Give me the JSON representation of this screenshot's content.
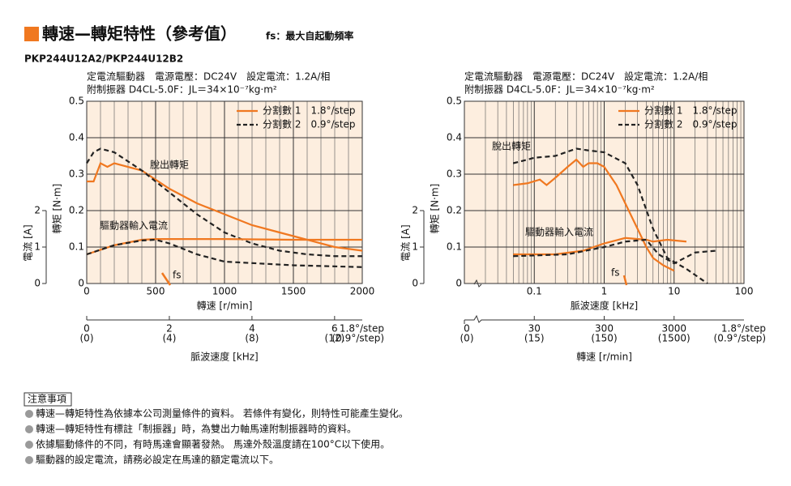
{
  "header": {
    "title": "轉速—轉矩特性（參考值）",
    "fs_note": "fs：最大自起動頻率",
    "model": "PKP244U12A2/PKP244U12B2"
  },
  "chart_data": [
    {
      "type": "line",
      "subtitle": [
        "定電流驅動器　電源電壓：DC24V　設定電流：1.2A/相",
        "附制振器 D4CL-5.0F：JL＝34×10⁻⁷kg·m²"
      ],
      "xlabel": "轉速 [r/min]",
      "ylabel": "轉矩 [N·m]",
      "y2label": "電流 [A]",
      "xlim": [
        0,
        2000
      ],
      "xticks": [
        0,
        500,
        1000,
        1500,
        2000
      ],
      "ylim": [
        0,
        0.5
      ],
      "yticks": [
        0,
        0.1,
        0.2,
        0.3,
        0.4,
        0.5
      ],
      "y2lim": [
        0,
        5
      ],
      "y2ticks": [
        0,
        1,
        2
      ],
      "grid": true,
      "log_x": false,
      "legend": "upper right",
      "annotations": [
        "脫出轉矩",
        "驅動器輸入電流",
        "fs"
      ],
      "x2": {
        "label": "脈波速度 [kHz]",
        "log": false,
        "lim": [
          0,
          6.67
        ],
        "ticks": [
          0,
          2,
          4,
          6
        ],
        "sub_labels": [
          "(0)",
          "(4)",
          "(8)",
          "(12)"
        ],
        "unit_labels": [
          "1.8°/step",
          "(0.9°/step)"
        ]
      },
      "series": [
        {
          "name": "分割數 1　1.8°/step",
          "color": "#f07820",
          "dash": false,
          "x": [
            0,
            50,
            100,
            150,
            200,
            400,
            600,
            800,
            1000,
            1200,
            1400,
            1600,
            1800,
            2000
          ],
          "values": [
            0.28,
            0.28,
            0.33,
            0.32,
            0.33,
            0.31,
            0.26,
            0.22,
            0.19,
            0.16,
            0.14,
            0.12,
            0.1,
            0.09
          ]
        },
        {
          "name": "分割數 2　0.9°/step",
          "color": "#222222",
          "dash": true,
          "x": [
            0,
            50,
            100,
            200,
            400,
            600,
            800,
            1000,
            1200,
            1400,
            1600,
            1800,
            2000
          ],
          "values": [
            0.33,
            0.36,
            0.37,
            0.36,
            0.31,
            0.25,
            0.19,
            0.14,
            0.11,
            0.09,
            0.08,
            0.075,
            0.075
          ]
        },
        {
          "color": "#f07820",
          "dash": false,
          "axis": "y2",
          "x": [
            0,
            200,
            400,
            500,
            700,
            1000,
            1500,
            2000
          ],
          "values": [
            0.8,
            1.05,
            1.2,
            1.22,
            1.22,
            1.22,
            1.2,
            1.2
          ]
        },
        {
          "color": "#222222",
          "dash": true,
          "axis": "y2",
          "x": [
            0,
            200,
            400,
            500,
            600,
            800,
            1000,
            1500,
            2000
          ],
          "values": [
            0.8,
            1.05,
            1.18,
            1.2,
            1.1,
            0.8,
            0.6,
            0.5,
            0.45
          ]
        }
      ]
    },
    {
      "type": "line",
      "subtitle": [
        "定電流驅動器　電源電壓：DC24V　設定電流：1.2A/相",
        "附制振器 D4CL-5.0F：JL＝34×10⁻⁷kg·m²"
      ],
      "xlabel": "脈波速度 [kHz]",
      "ylabel": "轉矩 [N·m]",
      "y2label": "電流 [A]",
      "xlim": [
        0.01,
        100
      ],
      "xticks": [
        0.1,
        1,
        10,
        100
      ],
      "ylim": [
        0,
        0.5
      ],
      "yticks": [
        0,
        0.1,
        0.2,
        0.3,
        0.4,
        0.5
      ],
      "y2lim": [
        0,
        5
      ],
      "y2ticks": [
        0,
        1,
        2
      ],
      "grid": true,
      "log_x": true,
      "legend": "upper right",
      "annotations": [
        "脫出轉矩",
        "驅動器輸入電流",
        "fs"
      ],
      "x2": {
        "label": "轉速 [r/min]",
        "log": true,
        "lim": [
          3,
          30000
        ],
        "ticks": [
          30,
          300,
          3000
        ],
        "sub_labels": [
          "(15)",
          "(150)",
          "(1500)"
        ],
        "break_labels": [
          "0",
          "(0)"
        ],
        "unit_labels": [
          "1.8°/step",
          "(0.9°/step)"
        ]
      },
      "series": [
        {
          "name": "分割數 1　1.8°/step",
          "color": "#f07820",
          "dash": false,
          "x": [
            0.05,
            0.08,
            0.12,
            0.15,
            0.2,
            0.3,
            0.4,
            0.5,
            0.6,
            0.8,
            1,
            1.5,
            2,
            3,
            4,
            5,
            7,
            10
          ],
          "values": [
            0.27,
            0.275,
            0.285,
            0.27,
            0.29,
            0.32,
            0.34,
            0.32,
            0.33,
            0.33,
            0.32,
            0.27,
            0.22,
            0.15,
            0.1,
            0.07,
            0.05,
            0.035
          ]
        },
        {
          "name": "分割數 2　0.9°/step",
          "color": "#222222",
          "dash": true,
          "x": [
            0.05,
            0.08,
            0.1,
            0.2,
            0.4,
            0.6,
            1,
            2,
            3,
            5,
            8,
            15,
            30
          ],
          "values": [
            0.33,
            0.34,
            0.345,
            0.35,
            0.37,
            0.365,
            0.36,
            0.33,
            0.27,
            0.15,
            0.07,
            0.04,
            0
          ]
        },
        {
          "color": "#f07820",
          "dash": false,
          "axis": "y2",
          "x": [
            0.05,
            0.2,
            0.5,
            1,
            2,
            4,
            5,
            8,
            15
          ],
          "values": [
            0.8,
            0.8,
            0.9,
            1.1,
            1.25,
            1.2,
            1.15,
            1.2,
            1.15
          ]
        },
        {
          "color": "#222222",
          "dash": true,
          "axis": "y2",
          "x": [
            0.05,
            0.3,
            1,
            2,
            4,
            6,
            10,
            20,
            40
          ],
          "values": [
            0.75,
            0.8,
            1,
            1.15,
            1.2,
            0.8,
            0.55,
            0.85,
            0.9
          ]
        }
      ]
    }
  ],
  "notes": {
    "title": "注意事項",
    "items": [
      "轉速—轉矩特性為依據本公司測量條件的資料。 若條件有變化，則特性可能產生變化。",
      "轉速—轉矩特性有標註「制振器」時，為雙出力軸馬達附制振器時的資料。",
      "依據驅動條件的不同，有時馬達會顯著發熱。 馬達外殼溫度請在100°C以下使用。",
      "驅動器的設定電流，請務必設定在馬達的額定電流以下。"
    ]
  }
}
